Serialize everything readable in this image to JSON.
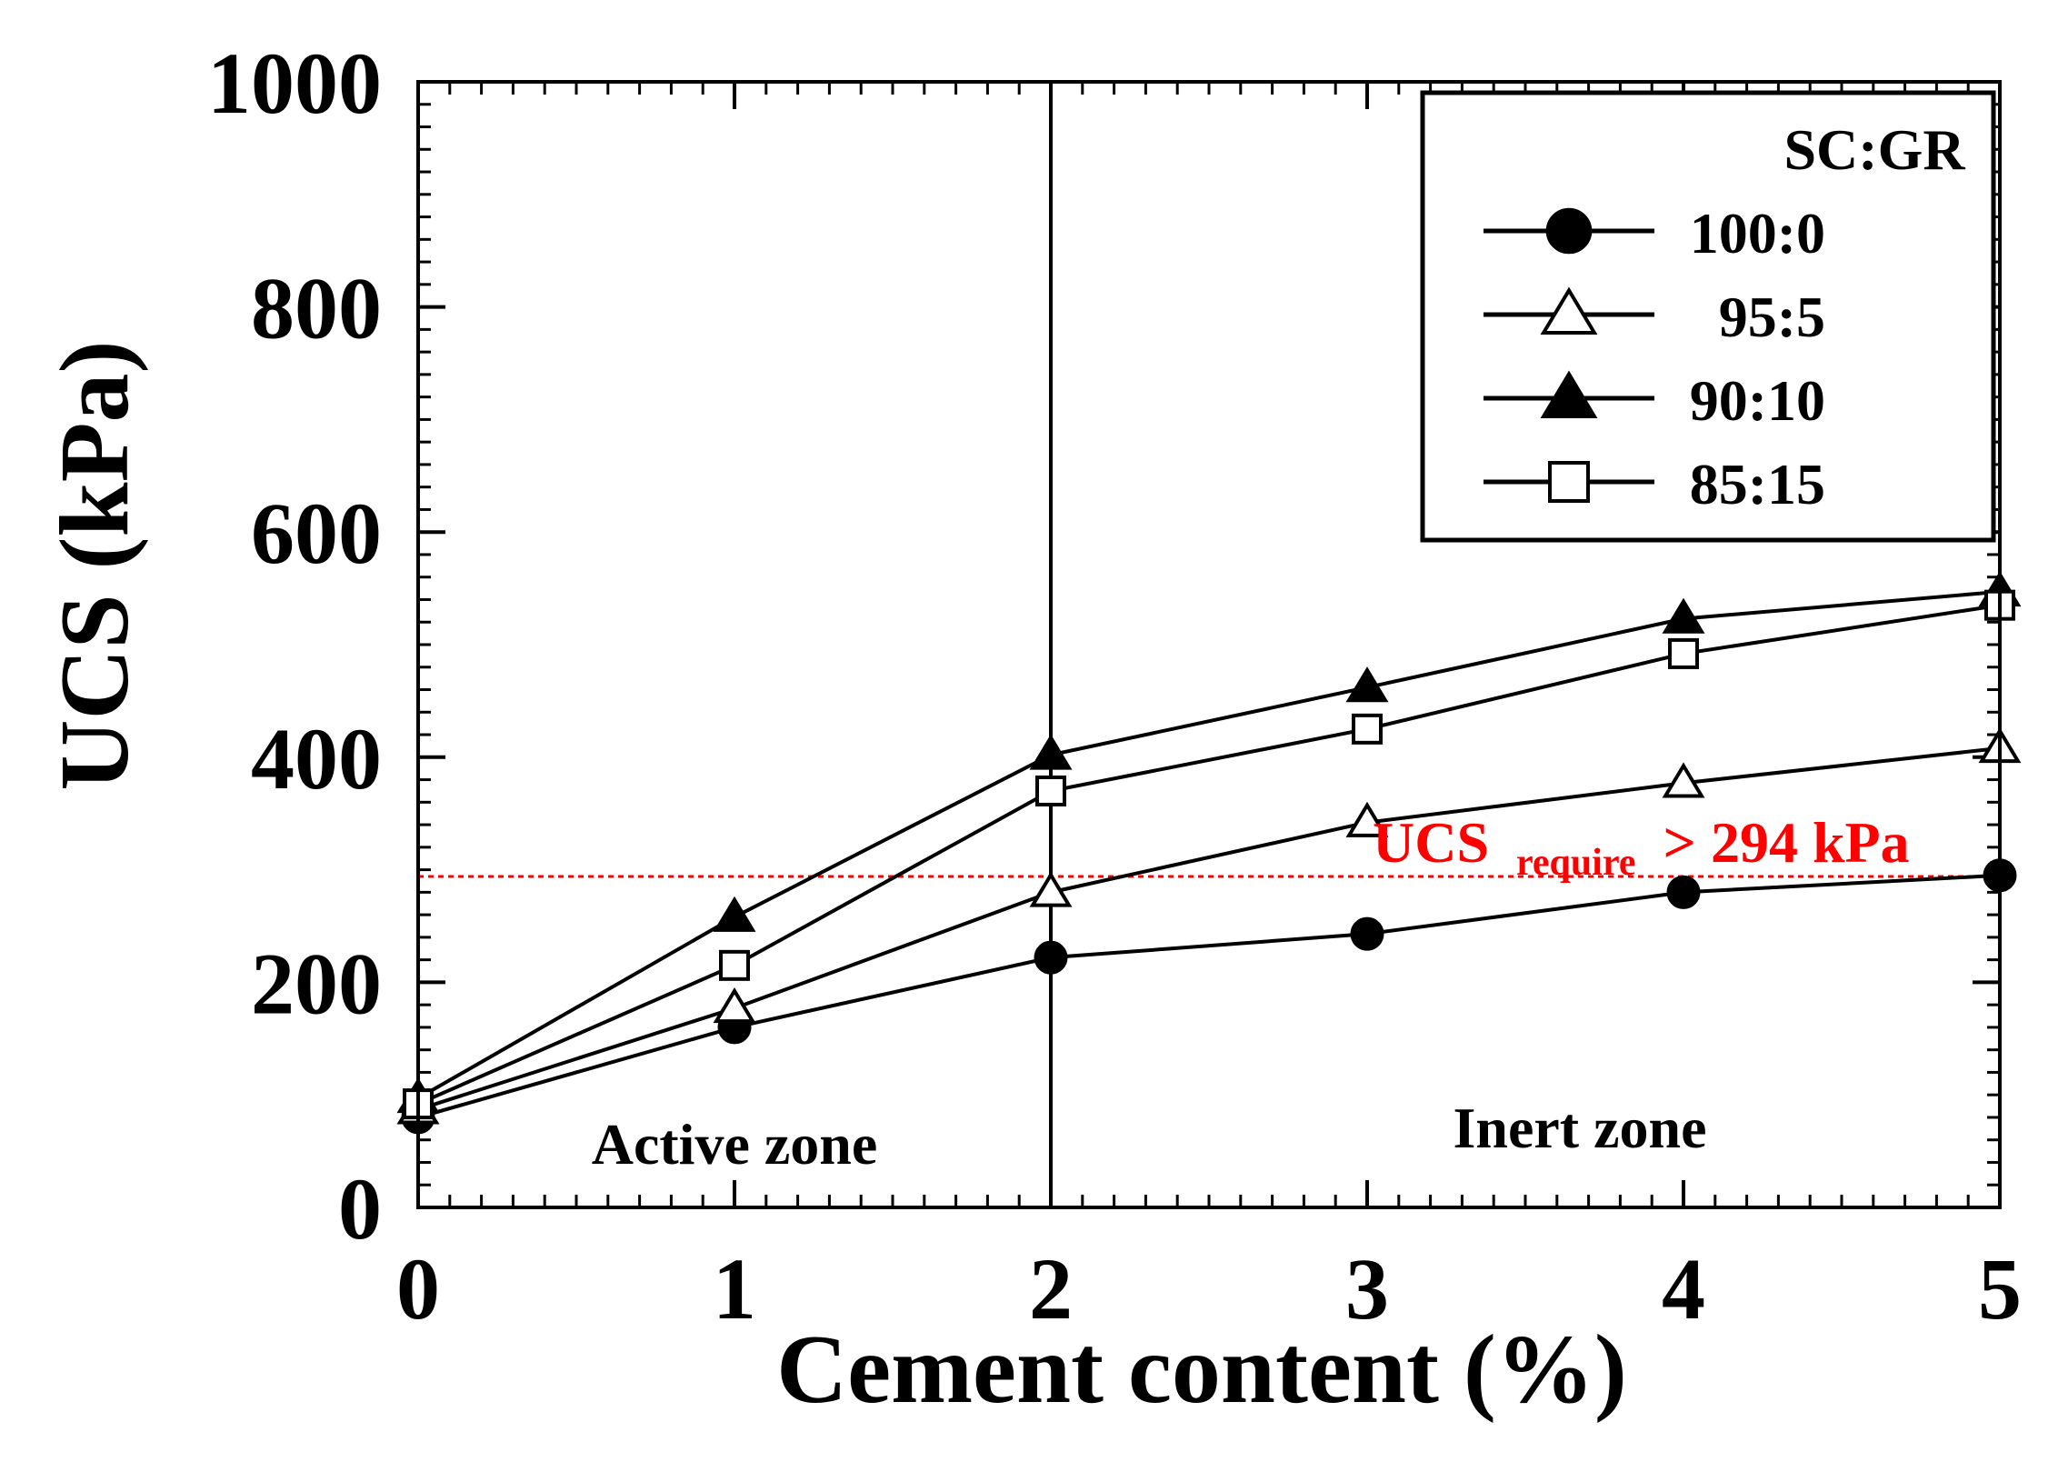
{
  "chart_data": {
    "type": "line",
    "xlabel": "Cement content (%)",
    "ylabel": "UCS (kPa)",
    "xlim": [
      0,
      5
    ],
    "ylim": [
      0,
      1000
    ],
    "x_ticks": [
      "0",
      "1",
      "2",
      "3",
      "4",
      "5"
    ],
    "y_ticks": [
      "0",
      "200",
      "400",
      "600",
      "800",
      "1000"
    ],
    "x": [
      0,
      1,
      2,
      3,
      4,
      5
    ],
    "legend_title": "SC:GR",
    "legend_position": "top-right",
    "series": [
      {
        "name": "100:0",
        "marker": "filled-circle",
        "values": [
          80,
          160,
          222,
          243,
          280,
          295
        ]
      },
      {
        "name": "95:5",
        "marker": "open-triangle",
        "values": [
          87,
          177,
          280,
          342,
          377,
          408
        ]
      },
      {
        "name": "90:10",
        "marker": "filled-triangle",
        "values": [
          97,
          258,
          402,
          462,
          523,
          547
        ]
      },
      {
        "name": "85:15",
        "marker": "open-square",
        "values": [
          92,
          215,
          370,
          425,
          492,
          535
        ]
      }
    ],
    "reference_line": {
      "y": 294,
      "color": "#ff0000",
      "label_main": "UCS",
      "label_sub": "require",
      "label_rest": "> 294 kPa"
    },
    "divider_x": 2,
    "annotations": {
      "left_zone": "Active zone",
      "right_zone": "Inert zone"
    }
  }
}
